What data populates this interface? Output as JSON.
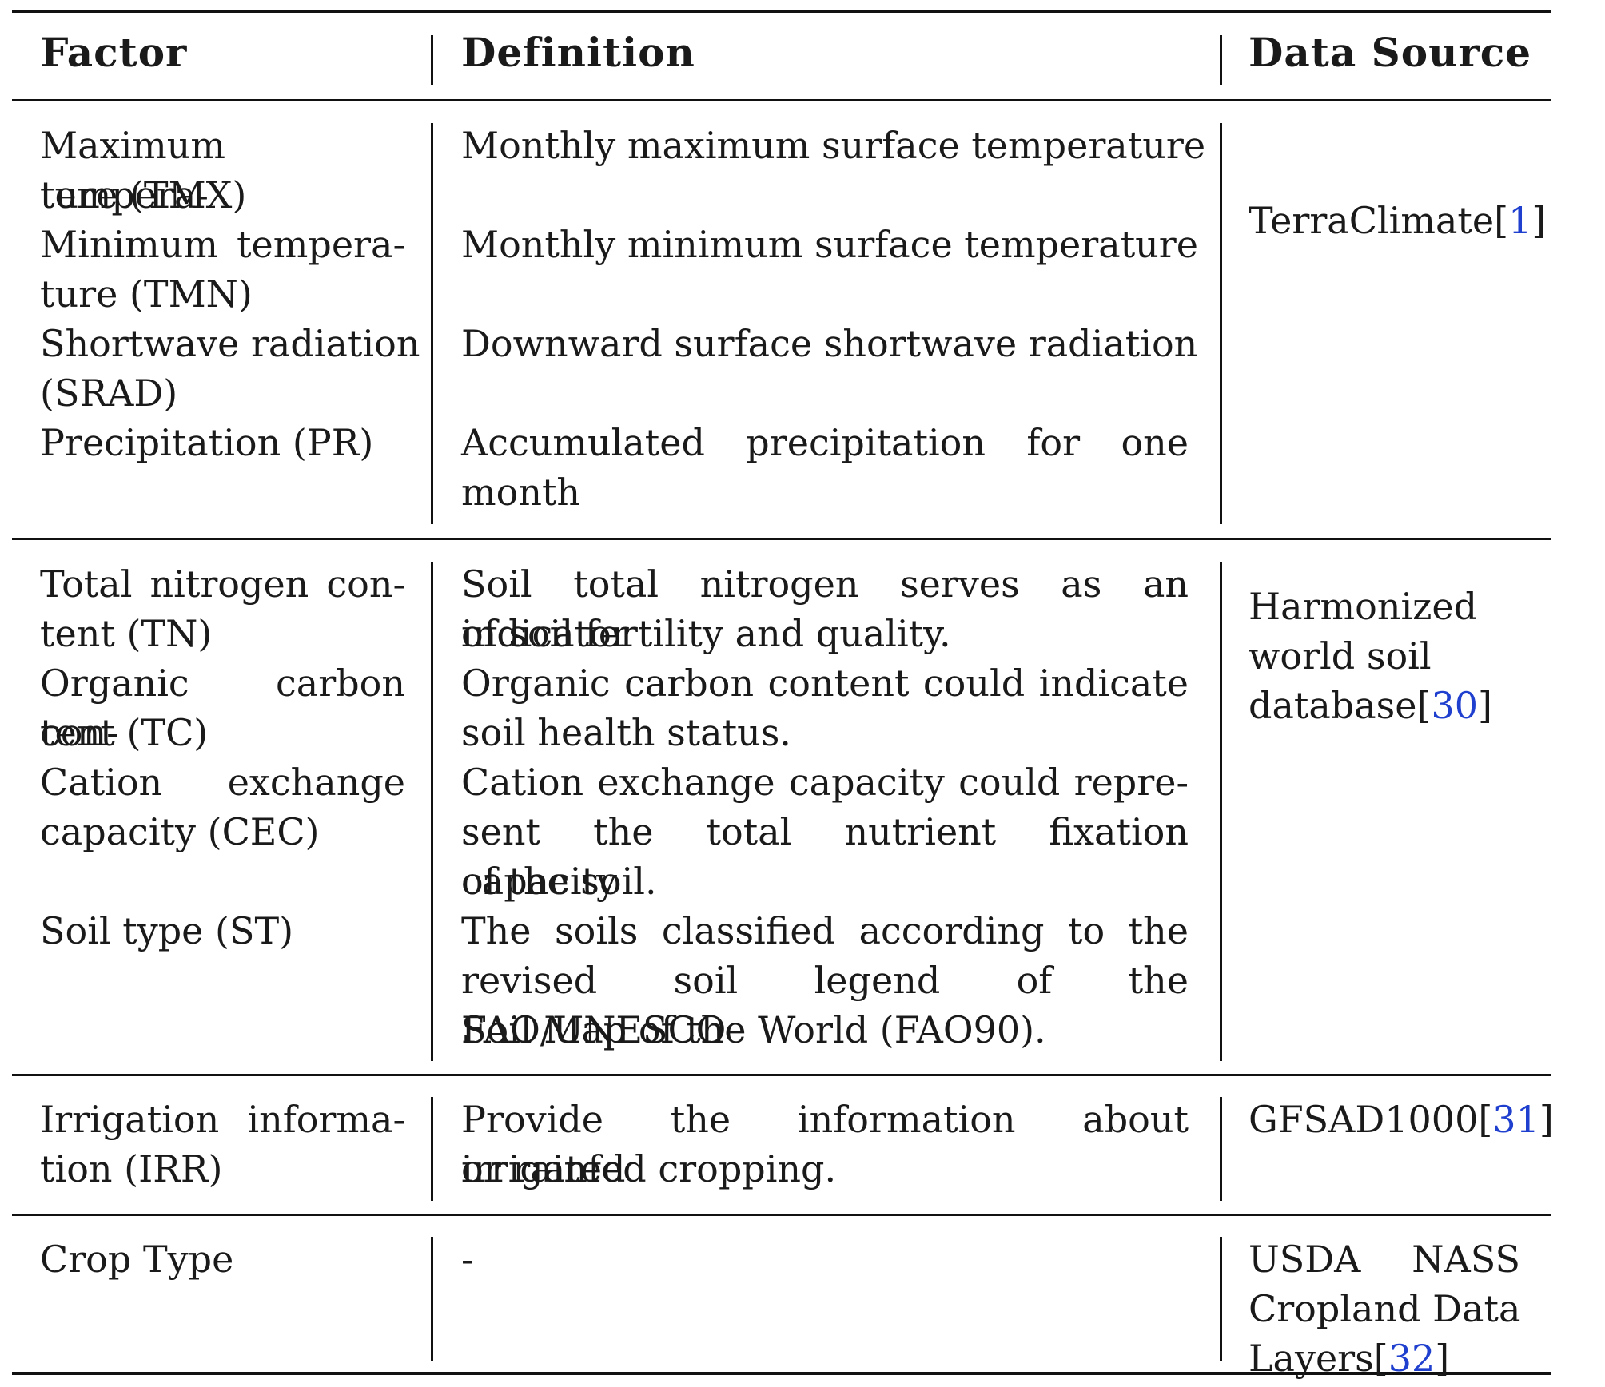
{
  "headers": {
    "factor": "Factor",
    "definition": "Definition",
    "source": "Data Source"
  },
  "groups": [
    {
      "factors": [
        [
          "Maximum tempera-",
          "ture (TMX)"
        ],
        [
          "Minimum tempera-",
          "ture (TMN)"
        ],
        [
          "Shortwave radiation",
          "(SRAD)"
        ],
        [
          "Precipitation (PR)"
        ]
      ],
      "definitions": [
        [
          "Monthly maximum surface temperature"
        ],
        [
          "Monthly minimum surface temperature"
        ],
        [
          "Downward surface shortwave radiation"
        ],
        [
          "Accumulated precipitation for one",
          "month"
        ]
      ],
      "source": {
        "lines": [
          "TerraClimate"
        ],
        "ref": "1"
      }
    },
    {
      "factors": [
        [
          "Total nitrogen con-",
          "tent (TN)"
        ],
        [
          "Organic carbon con-",
          "tent (TC)"
        ],
        [
          "Cation exchange",
          "capacity (CEC)"
        ],
        [
          "Soil type (ST)"
        ]
      ],
      "definitions": [
        [
          "Soil total nitrogen serves as an indicator",
          "of soil fertility and quality."
        ],
        [
          "Organic carbon content could indicate",
          "soil health status."
        ],
        [
          "Cation exchange capacity could repre-",
          "sent the total nutrient fixation capacity",
          "of the soil."
        ],
        [
          "The soils classified according to the",
          "revised soil legend of the FAO/UNESCO",
          "Soil Map of the World (FAO90)."
        ]
      ],
      "source": {
        "lines": [
          "Harmonized",
          "world soil",
          "database"
        ],
        "ref": "30"
      }
    },
    {
      "factors": [
        [
          "Irrigation informa-",
          "tion (IRR)"
        ]
      ],
      "definitions": [
        [
          "Provide the information about irrigated",
          "or rainfed cropping."
        ]
      ],
      "source": {
        "lines": [
          "GFSAD1000"
        ],
        "ref": "31"
      }
    },
    {
      "factors": [
        [
          "Crop Type"
        ]
      ],
      "definitions": [
        [
          "-"
        ]
      ],
      "source": {
        "lines": [
          "USDA NASS",
          "Cropland Data",
          "Layers"
        ],
        "ref": "32"
      }
    }
  ]
}
